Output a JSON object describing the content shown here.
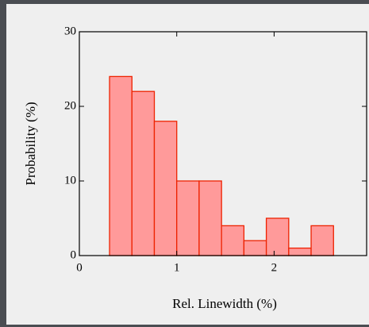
{
  "chart_data": {
    "type": "histogram",
    "x_label": "Rel. Linewidth (%)",
    "y_label": "Probability (%)",
    "bins": [
      0.31,
      0.54,
      0.77,
      1.0,
      1.23,
      1.46,
      1.69,
      1.92,
      2.15,
      2.38,
      2.61
    ],
    "values": [
      24,
      22,
      18,
      10,
      10,
      4,
      2,
      5,
      1,
      4
    ],
    "color": "#ff9a9a",
    "edge_color": "#ee2200",
    "xlim": [
      0,
      2.95
    ],
    "xticks": [
      0,
      1,
      2
    ],
    "ylim": [
      0,
      30
    ],
    "yticks": [
      0,
      10,
      20,
      30
    ],
    "grid": false
  }
}
